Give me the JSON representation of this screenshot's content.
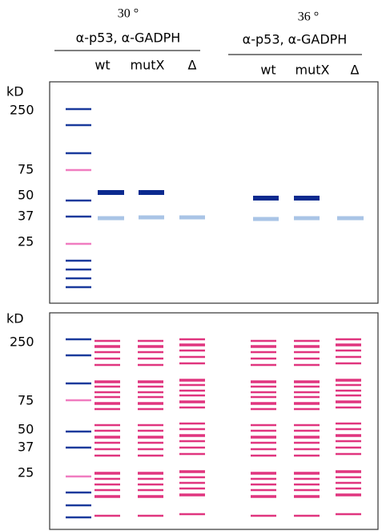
{
  "header": {
    "left": {
      "temperature": "30 °",
      "antibodies": "α-p53, α-GADPH",
      "lanes": [
        "wt",
        "mutX",
        "Δ"
      ]
    },
    "right": {
      "temperature": "36 °",
      "antibodies": "α-p53, α-GADPH",
      "lanes": [
        "wt",
        "mutX",
        "Δ"
      ]
    }
  },
  "panels": [
    {
      "unit": "kD",
      "markers": [
        "250",
        "75",
        "50",
        "37",
        "25"
      ]
    },
    {
      "unit": "kD",
      "markers": [
        "250",
        "75",
        "50",
        "37",
        "25"
      ]
    }
  ]
}
